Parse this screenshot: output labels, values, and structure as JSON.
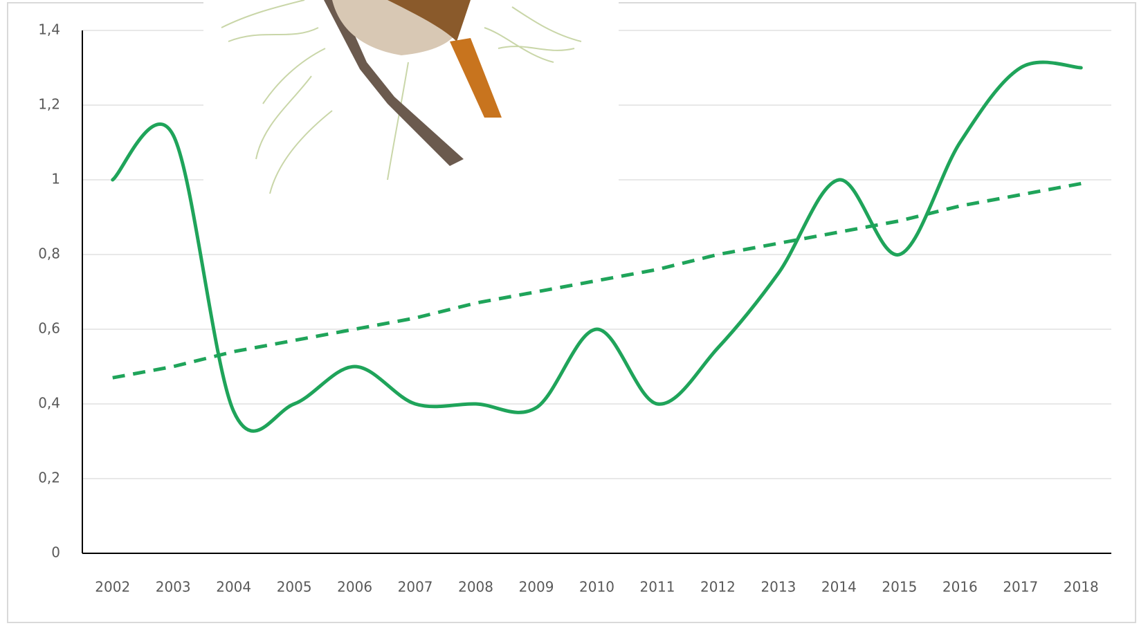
{
  "chart_data": {
    "type": "line",
    "categories": [
      "2002",
      "2003",
      "2004",
      "2005",
      "2006",
      "2007",
      "2008",
      "2009",
      "2010",
      "2011",
      "2012",
      "2013",
      "2014",
      "2015",
      "2016",
      "2017",
      "2018"
    ],
    "series": [
      {
        "color": "#1fa45a",
        "smooth": true,
        "values": [
          1.0,
          1.12,
          0.38,
          0.4,
          0.5,
          0.4,
          0.4,
          0.39,
          0.6,
          0.4,
          0.55,
          0.75,
          1.0,
          0.8,
          1.1,
          1.3,
          1.3
        ]
      },
      {
        "color": "#1fa45a",
        "dashed": true,
        "values": [
          0.47,
          0.5,
          0.54,
          0.57,
          0.6,
          0.63,
          0.67,
          0.7,
          0.73,
          0.76,
          0.8,
          0.83,
          0.86,
          0.89,
          0.93,
          0.96,
          0.99
        ]
      }
    ],
    "ylim": [
      0,
      1.4
    ],
    "yticks": [
      0,
      {
        "value": 0.2,
        "label": "0,2"
      },
      {
        "value": 0.4,
        "label": "0,4"
      },
      {
        "value": 0.6,
        "label": "0,6"
      },
      {
        "value": 0.8,
        "label": "0,8"
      },
      1,
      {
        "value": 1.2,
        "label": "1,2"
      },
      {
        "value": 1.4,
        "label": "1,4"
      }
    ],
    "grid": true
  }
}
